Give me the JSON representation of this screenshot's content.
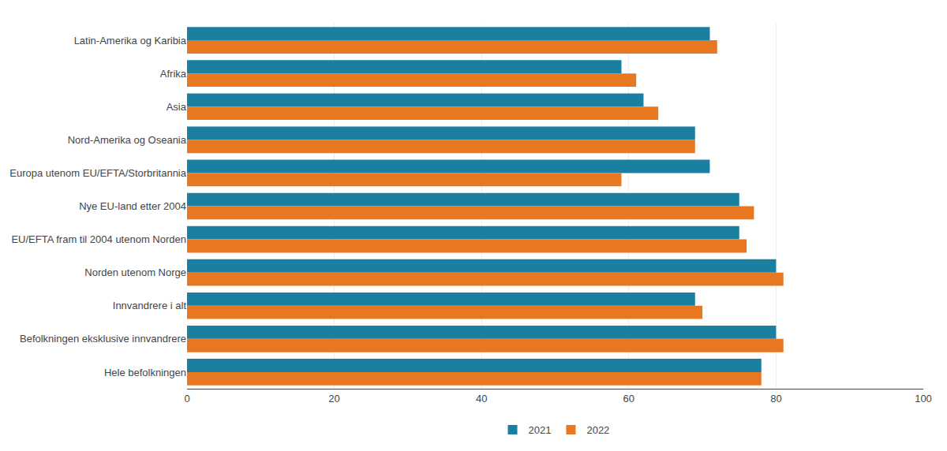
{
  "chart_data": {
    "type": "bar",
    "orientation": "horizontal",
    "categories": [
      "Latin-Amerika og Karibia",
      "Afrika",
      "Asia",
      "Nord-Amerika og Oseania",
      "Europa utenom EU/EFTA/Storbritannia",
      "Nye EU-land etter 2004",
      "EU/EFTA fram til 2004 utenom Norden",
      "Norden utenom Norge",
      "Innvandrere i alt",
      "Befolkningen eksklusive innvandrere",
      "Hele befolkningen"
    ],
    "series": [
      {
        "name": "2021",
        "color": "#1a7fa0",
        "values": [
          71,
          59,
          62,
          69,
          71,
          75,
          75,
          80,
          69,
          80,
          78
        ]
      },
      {
        "name": "2022",
        "color": "#e87722",
        "values": [
          72,
          61,
          64,
          69,
          59,
          77,
          76,
          81,
          70,
          81,
          78
        ]
      }
    ],
    "xlim": [
      0,
      100
    ],
    "xticks": [
      0,
      20,
      40,
      60,
      80,
      100
    ],
    "grid": true,
    "legend": "bottom"
  }
}
